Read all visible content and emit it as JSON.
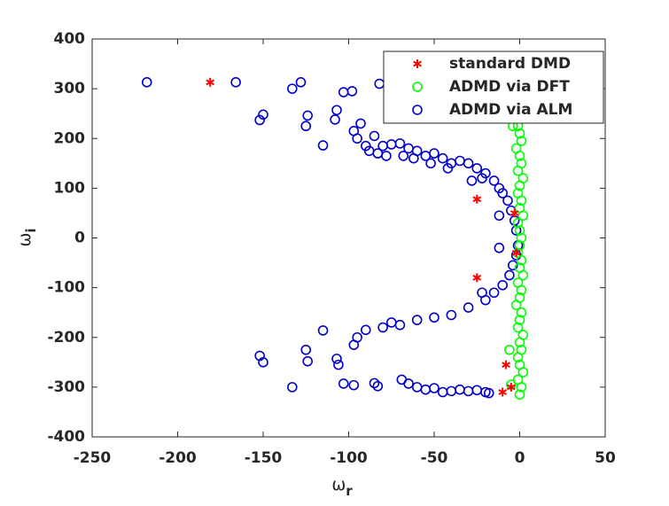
{
  "chart_data": {
    "type": "scatter",
    "xlabel": {
      "symbol": "ω",
      "subscript": "r"
    },
    "ylabel": {
      "symbol": "ω",
      "subscript": "i"
    },
    "xlim": [
      -250,
      50
    ],
    "xticks": [
      -250,
      -200,
      -150,
      -100,
      -50,
      0,
      50
    ],
    "ylim": [
      -400,
      400
    ],
    "yticks": [
      -400,
      -300,
      -200,
      -100,
      0,
      100,
      200,
      300,
      400
    ],
    "legend": "northeast",
    "series": [
      {
        "name": "standard DMD",
        "color": "#ff0000",
        "marker": "asterisk",
        "x": [
          -181,
          -25,
          -25,
          -8,
          -5,
          -3,
          -2,
          -10
        ],
        "y": [
          313,
          78,
          -80,
          -255,
          -300,
          50,
          -30,
          -310
        ]
      },
      {
        "name": "ADMD via DFT",
        "color": "#00ff00",
        "marker": "circle",
        "x": [
          0,
          1,
          -1,
          2,
          0,
          -1,
          1,
          0,
          2,
          -1,
          0,
          1,
          -2,
          0,
          1,
          -1,
          2,
          0,
          1,
          -1,
          0,
          1,
          0,
          -1,
          2,
          0,
          1,
          -1,
          0,
          2,
          -1,
          1,
          0,
          -2,
          1,
          0,
          -1,
          2,
          0,
          1,
          -1,
          0,
          1,
          -5,
          -4,
          -6
        ],
        "y": [
          -315,
          -300,
          -285,
          -270,
          -255,
          -240,
          -225,
          -210,
          -195,
          -180,
          -165,
          -150,
          -135,
          -120,
          -105,
          -90,
          -75,
          -60,
          -45,
          -30,
          -15,
          0,
          15,
          30,
          45,
          60,
          75,
          90,
          105,
          120,
          135,
          150,
          165,
          180,
          195,
          210,
          225,
          240,
          255,
          270,
          285,
          300,
          315,
          -295,
          225,
          -225
        ]
      },
      {
        "name": "ADMD via ALM",
        "color": "#0000cc",
        "marker": "circle",
        "x": [
          -218,
          -166,
          -133,
          -128,
          -152,
          -150,
          -125,
          -124,
          -115,
          -108,
          -107,
          -103,
          -98,
          -97,
          -95,
          -93,
          -90,
          -88,
          -82,
          -85,
          -83,
          -80,
          -78,
          -75,
          -70,
          -68,
          -65,
          -62,
          -60,
          -55,
          -52,
          -50,
          -45,
          -42,
          -40,
          -35,
          -30,
          -28,
          -25,
          -22,
          -20,
          -15,
          -12,
          -10,
          -7,
          -5,
          -3,
          -2,
          -133,
          -152,
          -150,
          -125,
          -124,
          -115,
          -107,
          -106,
          -103,
          -97,
          -97,
          -95,
          -90,
          -85,
          -83,
          -80,
          -75,
          -70,
          -69,
          -65,
          -60,
          -60,
          -55,
          -50,
          -50,
          -45,
          -40,
          -40,
          -35,
          -30,
          -30,
          -25,
          -22,
          -20,
          -20,
          -18,
          -15,
          -10,
          -6,
          -4,
          -2,
          -1,
          -12,
          -12
        ],
        "y": [
          313,
          313,
          300,
          313,
          237,
          248,
          225,
          246,
          186,
          238,
          257,
          293,
          295,
          215,
          200,
          230,
          185,
          175,
          310,
          205,
          170,
          185,
          165,
          188,
          190,
          165,
          180,
          160,
          175,
          165,
          150,
          170,
          160,
          140,
          150,
          155,
          150,
          115,
          140,
          120,
          130,
          115,
          100,
          90,
          75,
          55,
          35,
          15,
          -300,
          -237,
          -250,
          -225,
          -248,
          -186,
          -243,
          -255,
          -293,
          -296,
          -215,
          -200,
          -185,
          -292,
          -298,
          -180,
          -170,
          -175,
          -285,
          -293,
          -165,
          -300,
          -305,
          -160,
          -302,
          -310,
          -155,
          -308,
          -305,
          -140,
          -308,
          -306,
          -110,
          -125,
          -310,
          -312,
          -110,
          -95,
          -75,
          -55,
          -35,
          -15,
          45,
          -20
        ]
      }
    ]
  }
}
